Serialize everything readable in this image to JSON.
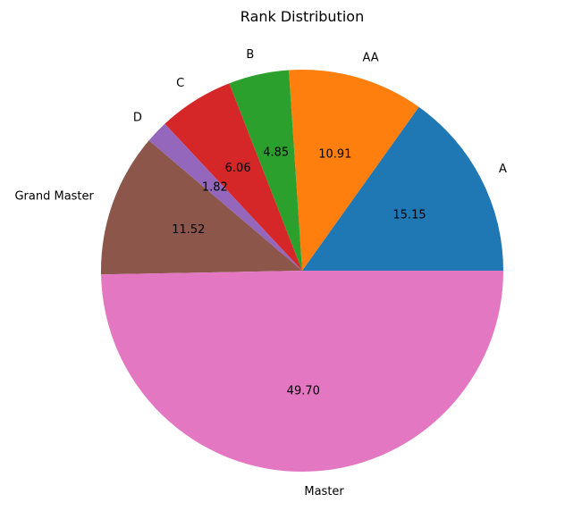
{
  "chart_data": {
    "type": "pie",
    "title": "Rank Distribution",
    "labels": [
      "A",
      "AA",
      "B",
      "C",
      "D",
      "Grand Master",
      "Master"
    ],
    "values": [
      15.15,
      10.91,
      4.85,
      6.06,
      1.82,
      11.52,
      49.7
    ],
    "value_labels": [
      "15.15",
      "10.91",
      "4.85",
      "6.06",
      "1.82",
      "11.52",
      "49.70"
    ],
    "colors": [
      "#1f77b4",
      "#ff7f0e",
      "#2ca02c",
      "#d62728",
      "#9467bd",
      "#8c564b",
      "#e377c2"
    ],
    "start_angle_deg": 0,
    "direction": "counterclockwise",
    "legend": "none"
  }
}
